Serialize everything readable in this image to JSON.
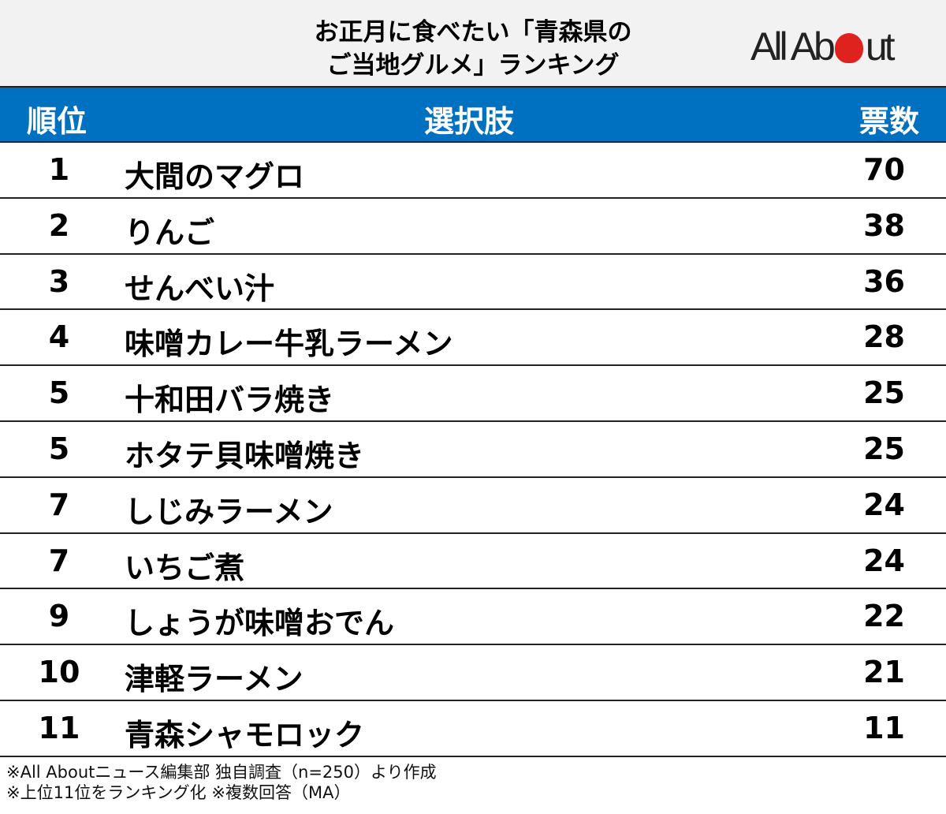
{
  "title": {
    "line1": "お正月に食べたい「青森県の",
    "line2": "ご当地グルメ」ランキング"
  },
  "logo": {
    "text_left": "All Ab",
    "text_right": "ut",
    "brand_color": "#e0221f"
  },
  "header": {
    "rank": "順位",
    "choice": "選択肢",
    "votes": "票数",
    "bg_color": "#0070c0"
  },
  "chart_data": {
    "type": "table",
    "columns": [
      "順位",
      "選択肢",
      "票数"
    ],
    "rows": [
      {
        "rank": "1",
        "name": "大間のマグロ",
        "votes": "70"
      },
      {
        "rank": "2",
        "name": "りんご",
        "votes": "38"
      },
      {
        "rank": "3",
        "name": "せんべい汁",
        "votes": "36"
      },
      {
        "rank": "4",
        "name": "味噌カレー牛乳ラーメン",
        "votes": "28"
      },
      {
        "rank": "5",
        "name": "十和田バラ焼き",
        "votes": "25"
      },
      {
        "rank": "5",
        "name": "ホタテ貝味噌焼き",
        "votes": "25"
      },
      {
        "rank": "7",
        "name": "しじみラーメン",
        "votes": "24"
      },
      {
        "rank": "7",
        "name": "いちご煮",
        "votes": "24"
      },
      {
        "rank": "9",
        "name": "しょうが味噌おでん",
        "votes": "22"
      },
      {
        "rank": "10",
        "name": "津軽ラーメン",
        "votes": "21"
      },
      {
        "rank": "11",
        "name": "青森シャモロック",
        "votes": "11"
      }
    ]
  },
  "footer": {
    "note1": "※All Aboutニュース編集部 独自調査（n=250）より作成",
    "note2": "※上位11位をランキング化 ※複数回答（MA）"
  }
}
